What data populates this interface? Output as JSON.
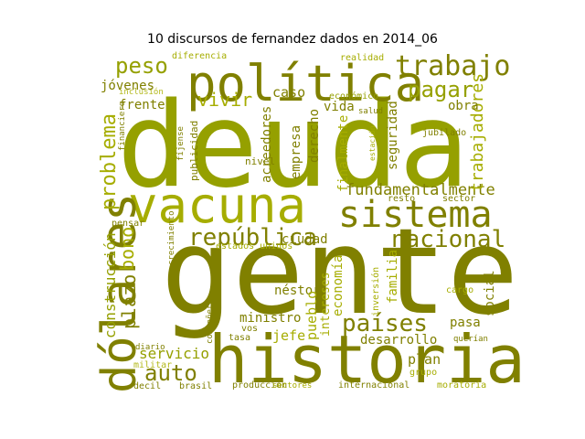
{
  "title": "10 discursos de fernandez dados en 2014_06",
  "colors": {
    "olive_dark": "#808000",
    "olive_light": "#a6ad00",
    "olive_mid": "#95a000",
    "olive_pale": "#b3b81a"
  },
  "words": [
    {
      "text": "deuda",
      "color": "#95a000"
    },
    {
      "text": "gente",
      "color": "#808000"
    },
    {
      "text": "historia",
      "color": "#808000"
    },
    {
      "text": "política",
      "color": "#808000"
    },
    {
      "text": "vacuna",
      "color": "#a6ad00"
    },
    {
      "text": "sistema",
      "color": "#808000"
    },
    {
      "text": "dólares",
      "color": "#808000"
    },
    {
      "text": "trabajo",
      "color": "#808000"
    },
    {
      "text": "peso",
      "color": "#95a000"
    },
    {
      "text": "pagar",
      "color": "#95a000"
    },
    {
      "text": "república",
      "color": "#808000"
    },
    {
      "text": "nacional",
      "color": "#808000"
    },
    {
      "text": "países",
      "color": "#808000"
    },
    {
      "text": "problema",
      "color": "#a6ad00"
    },
    {
      "text": "vivir",
      "color": "#a6ad00"
    },
    {
      "text": "auto",
      "color": "#808000"
    },
    {
      "text": "bono",
      "color": "#a6ad00"
    },
    {
      "text": "plazo",
      "color": "#808000"
    },
    {
      "text": "fundamentalmente",
      "color": "#808000"
    },
    {
      "text": "trabajadores",
      "color": "#a6ad00"
    },
    {
      "text": "servicio",
      "color": "#95a000"
    },
    {
      "text": "construcción",
      "color": "#95a000"
    },
    {
      "text": "jóvenes",
      "color": "#808000"
    },
    {
      "text": "frente",
      "color": "#808000"
    },
    {
      "text": "caso",
      "color": "#808000"
    },
    {
      "text": "ciudad",
      "color": "#808000"
    },
    {
      "text": "néstor",
      "color": "#808000"
    },
    {
      "text": "ministro",
      "color": "#808000"
    },
    {
      "text": "jefe",
      "color": "#a6ad00"
    },
    {
      "text": "pueblo",
      "color": "#a6ad00"
    },
    {
      "text": "economía",
      "color": "#a6ad00"
    },
    {
      "text": "familia",
      "color": "#a6ad00"
    },
    {
      "text": "social",
      "color": "#808000"
    },
    {
      "text": "desarrollo",
      "color": "#808000"
    },
    {
      "text": "pasa",
      "color": "#808000"
    },
    {
      "text": "plan",
      "color": "#808000"
    },
    {
      "text": "acreedores",
      "color": "#808000"
    },
    {
      "text": "empresa",
      "color": "#808000"
    },
    {
      "text": "derecho",
      "color": "#808000"
    },
    {
      "text": "vida",
      "color": "#808000"
    },
    {
      "text": "finalmente",
      "color": "#a6ad00"
    },
    {
      "text": "seguridad",
      "color": "#808000"
    },
    {
      "text": "obra",
      "color": "#808000"
    },
    {
      "text": "intereses",
      "color": "#a6ad00"
    },
    {
      "text": "estados unidos",
      "color": "#a6ad00"
    },
    {
      "text": "diferencia",
      "color": "#a6ad00"
    },
    {
      "text": "realidad",
      "color": "#a6ad00"
    },
    {
      "text": "inclusión",
      "color": "#b3b81a"
    },
    {
      "text": "financiero",
      "color": "#808000"
    },
    {
      "text": "publicidad",
      "color": "#808000"
    },
    {
      "text": "nivel",
      "color": "#808000"
    },
    {
      "text": "económico",
      "color": "#95a000"
    },
    {
      "text": "salud",
      "color": "#808000"
    },
    {
      "text": "jubilado",
      "color": "#808000"
    },
    {
      "text": "estación",
      "color": "#a6ad00"
    },
    {
      "text": "resto",
      "color": "#808000"
    },
    {
      "text": "sector",
      "color": "#808000"
    },
    {
      "text": "inversión",
      "color": "#a6ad00"
    },
    {
      "text": "producción",
      "color": "#808000"
    },
    {
      "text": "sectores",
      "color": "#a6ad00"
    },
    {
      "text": "internacional",
      "color": "#808000"
    },
    {
      "text": "moratoria",
      "color": "#a6ad00"
    },
    {
      "text": "militar",
      "color": "#b3b81a"
    },
    {
      "text": "compañero",
      "color": "#808000"
    },
    {
      "text": "decil",
      "color": "#808000"
    },
    {
      "text": "brasil",
      "color": "#808000"
    },
    {
      "text": "grupo",
      "color": "#a6ad00"
    },
    {
      "text": "cargo",
      "color": "#a6ad00"
    },
    {
      "text": "pugo",
      "color": "#808000"
    },
    {
      "text": "querían",
      "color": "#808000"
    },
    {
      "text": "tasa",
      "color": "#808000"
    },
    {
      "text": "vos",
      "color": "#808000"
    },
    {
      "text": "crecimiento",
      "color": "#808000"
    },
    {
      "text": "fíjense",
      "color": "#808000"
    },
    {
      "text": "pensar",
      "color": "#808000"
    },
    {
      "text": "diario",
      "color": "#808000"
    }
  ]
}
